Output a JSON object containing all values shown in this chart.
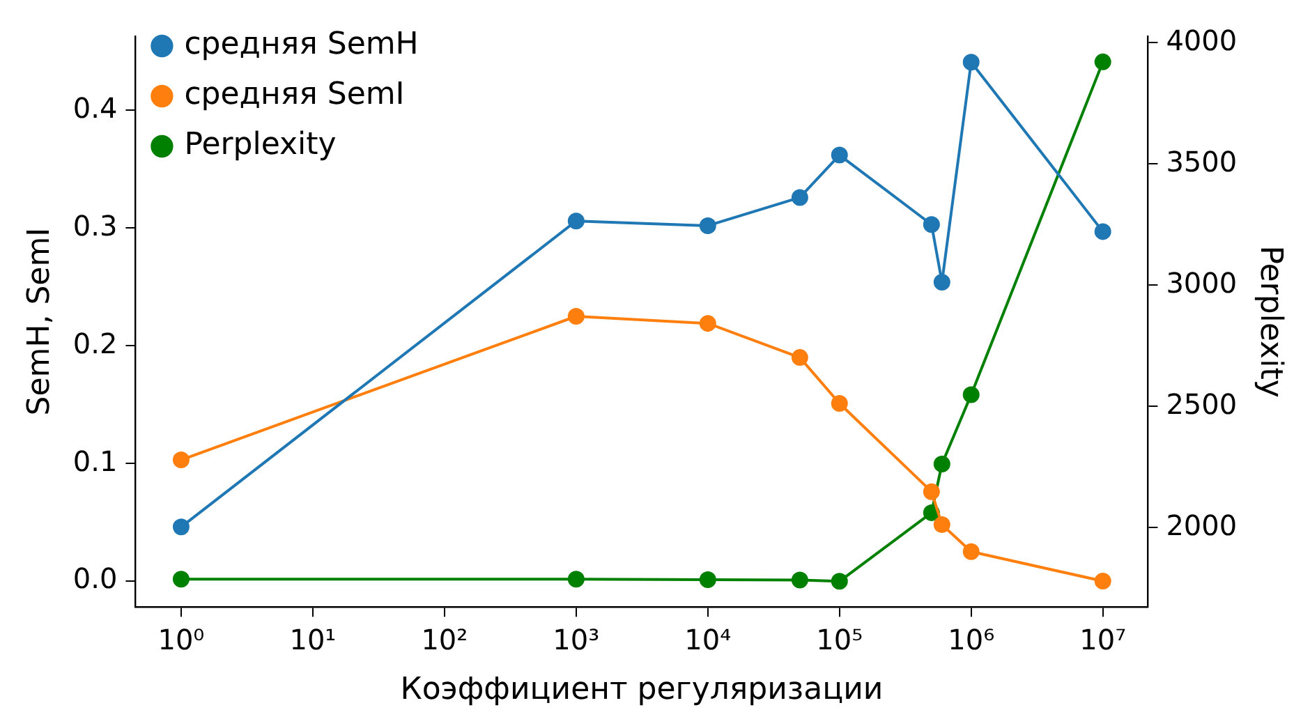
{
  "chart_data": {
    "type": "line",
    "xlabel": "Коэффициент регуляризации",
    "ylabel": "SemH, SemI",
    "y2label": "Perplexity",
    "x": [
      1,
      1000,
      10000,
      50000,
      100000,
      500000,
      600000,
      1000000,
      10000000
    ],
    "series": [
      {
        "name": "средняя SemH",
        "color": "#1f77b4",
        "values": [
          0.046,
          0.306,
          0.302,
          0.326,
          0.362,
          0.303,
          0.254,
          0.441,
          0.297
        ]
      },
      {
        "name": "средняя SemI",
        "color": "#ff7f0e",
        "values": [
          0.103,
          0.225,
          0.219,
          0.19,
          0.151,
          0.076,
          0.048,
          0.025,
          0.0
        ]
      },
      {
        "name": "Perplexity",
        "color": "#008000",
        "axis": "y2",
        "values": [
          1787,
          1787,
          1785,
          1783,
          1778,
          2061,
          2262,
          2548,
          3921
        ]
      }
    ],
    "log": "x",
    "xlim": [
      0.45,
      22000000
    ],
    "xticks": [
      {
        "value": 1,
        "label": "10⁰"
      },
      {
        "value": 10,
        "label": "10¹"
      },
      {
        "value": 100,
        "label": "10²"
      },
      {
        "value": 1000,
        "label": "10³"
      },
      {
        "value": 10000,
        "label": "10⁴"
      },
      {
        "value": 100000,
        "label": "10⁵"
      },
      {
        "value": 1000000,
        "label": "10⁶"
      },
      {
        "value": 10000000,
        "label": "10⁷"
      }
    ],
    "ylim": [
      -0.022,
      0.463
    ],
    "yticks": [
      {
        "value": 0,
        "label": "0.0"
      },
      0.1,
      0.2,
      0.3,
      0.4
    ],
    "y2lim": [
      1672,
      4027
    ],
    "y2ticks": [
      2000,
      2500,
      3000,
      3500,
      4000
    ],
    "grid": false,
    "legend": "top left",
    "marker": "circle",
    "line_style": "solid"
  }
}
